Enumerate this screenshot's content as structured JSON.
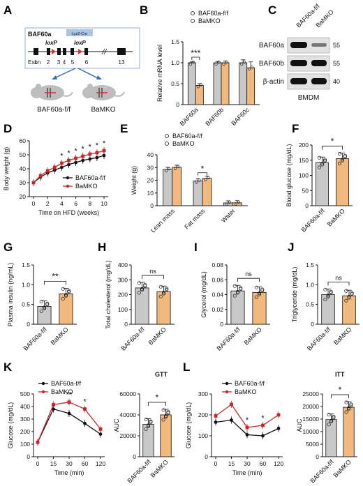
{
  "colors": {
    "ctrl": "#C8C8C8",
    "ko": "#F2B97E",
    "ctrl_line": "#111111",
    "ko_line": "#C62828",
    "gene_box": "#A9C4E6"
  },
  "panels": {
    "A": {
      "letter": "A",
      "gene": "BAF60a",
      "cre_label": "Lyz2-Cre",
      "loxp1": "loxP",
      "loxp2": "loxP",
      "exon_label": "Exon",
      "exon_nums": [
        "1",
        "2",
        "3",
        "4",
        "5",
        "6",
        "13"
      ],
      "mouse1": "BAF60a-f/f",
      "mouse2": "BaMKO"
    },
    "C": {
      "letter": "C",
      "col1": "BAF60a-f/f",
      "col2": "BaMKO",
      "rows": [
        "BAF60a",
        "BAF60b",
        "β-actin"
      ],
      "markers": [
        "55",
        "55",
        "40"
      ],
      "caption": "BMDM"
    }
  },
  "chart_data": [
    {
      "panel": "B",
      "type": "bar",
      "ylabel": "Relative mRNA level",
      "ylim": [
        0,
        1.5
      ],
      "yticks": [
        "0",
        "0.5",
        "1.0",
        "1.5"
      ],
      "categories": [
        "BAF60a",
        "BAF60b",
        "BAF60c"
      ],
      "series": [
        {
          "name": "BAF60a-f/f",
          "values": [
            1.0,
            1.0,
            1.0
          ],
          "err": [
            0.02,
            0.03,
            0.07
          ]
        },
        {
          "name": "BaMKO",
          "values": [
            0.46,
            1.0,
            0.88
          ],
          "err": [
            0.04,
            0.04,
            0.14
          ]
        }
      ],
      "legend": "top",
      "annotations": [
        {
          "text": "***",
          "between": [
            0,
            0
          ]
        }
      ]
    },
    {
      "panel": "D",
      "type": "line",
      "xlabel": "Time on HFD (weeks)",
      "ylabel": "Body weight (g)",
      "x": [
        0,
        1,
        2,
        3,
        4,
        5,
        6,
        7,
        8,
        9,
        10
      ],
      "xticks": [
        "0",
        "2",
        "4",
        "6",
        "8",
        "10"
      ],
      "ylim": [
        20,
        60
      ],
      "yticks": [
        "20",
        "30",
        "40",
        "50",
        "60"
      ],
      "series": [
        {
          "name": "BAF60a-f/f",
          "values": [
            30,
            34,
            37,
            39,
            41,
            43,
            44.5,
            46,
            47,
            48,
            49.5
          ]
        },
        {
          "name": "BaMKO",
          "values": [
            30,
            35,
            38.5,
            41,
            44,
            46,
            47.5,
            49,
            50.5,
            51.5,
            53
          ]
        }
      ],
      "stars": [
        "*",
        "*",
        "*",
        "*",
        "*",
        "*",
        "*"
      ],
      "star_x": [
        4,
        5,
        6,
        7,
        8,
        9,
        10
      ],
      "legend": "right"
    },
    {
      "panel": "E",
      "type": "bar",
      "ylabel": "Weight (g)",
      "ylim": [
        0,
        40
      ],
      "yticks": [
        "0",
        "10",
        "20",
        "30",
        "40"
      ],
      "categories": [
        "Lean mass",
        "Fat mass",
        "Water"
      ],
      "series": [
        {
          "name": "BAF60a-f/f",
          "values": [
            28.5,
            19.5,
            2.2
          ]
        },
        {
          "name": "BaMKO",
          "values": [
            30.2,
            21.5,
            2.3
          ]
        }
      ],
      "legend": "top",
      "annotations": [
        {
          "text": "*",
          "category": 1
        }
      ]
    },
    {
      "panel": "F",
      "type": "bar",
      "ylabel": "Blood glucose (mg/dL)",
      "ylim": [
        0,
        200
      ],
      "yticks": [
        "0",
        "50",
        "100",
        "150",
        "200"
      ],
      "categories": [
        "BAF60a-f/f",
        "BaMKO"
      ],
      "values": [
        142,
        155
      ],
      "sig": "*"
    },
    {
      "panel": "G",
      "type": "bar",
      "ylabel": "Plasma insulin (ng/mL)",
      "ylim": [
        0,
        1.5
      ],
      "yticks": [
        "0",
        "0.5",
        "1.0",
        "1.5"
      ],
      "categories": [
        "BAF60a-f/f",
        "BaMKO"
      ],
      "values": [
        0.45,
        0.77
      ],
      "sig": "**"
    },
    {
      "panel": "H",
      "type": "bar",
      "ylabel": "Total cholesterol (mg/dL)",
      "ylim": [
        0,
        400
      ],
      "yticks": [
        "0",
        "100",
        "200",
        "300",
        "400"
      ],
      "categories": [
        "BAF60a-f/f",
        "BaMKO"
      ],
      "values": [
        245,
        220
      ],
      "sig": "ns"
    },
    {
      "panel": "I",
      "type": "bar",
      "ylabel": "Glycerol (mg/dL)",
      "ylim": [
        0,
        0.08
      ],
      "yticks": [
        "0",
        "0.02",
        "0.04",
        "0.06",
        "0.08"
      ],
      "categories": [
        "BAF60a-f/f",
        "BaMKO"
      ],
      "values": [
        0.045,
        0.043
      ],
      "sig": "ns"
    },
    {
      "panel": "J",
      "type": "bar",
      "ylabel": "Triglyceride (mg/dL)",
      "ylim": [
        0,
        1.5
      ],
      "yticks": [
        "0",
        "0.5",
        "1.0",
        "1.5"
      ],
      "categories": [
        "BAF60a-f/f",
        "BaMKO"
      ],
      "values": [
        0.75,
        0.72
      ],
      "sig": "ns"
    },
    {
      "panel": "K",
      "type": "line",
      "title": "GTT",
      "xlabel": "Time (min)",
      "ylabel": "Glucose (mg/dL)",
      "x": [
        "0",
        "15",
        "30",
        "60",
        "120"
      ],
      "ylim": [
        0,
        500
      ],
      "yticks": [
        "0",
        "100",
        "200",
        "300",
        "400",
        "500"
      ],
      "series": [
        {
          "name": "BAF60a-f/f",
          "values": [
            115,
            380,
            345,
            265,
            180
          ]
        },
        {
          "name": "BaMKO",
          "values": [
            115,
            415,
            435,
            380,
            220
          ]
        }
      ],
      "stars": [
        "**",
        "*"
      ],
      "star_x": [
        2,
        3
      ],
      "legend": "top-left"
    },
    {
      "panel": "K",
      "type": "bar",
      "ylabel": "AUC",
      "ylim": [
        0,
        60000
      ],
      "yticks": [
        "0",
        "20000",
        "40000",
        "60000"
      ],
      "categories": [
        "BAF60a-f/f",
        "BaMKO"
      ],
      "values": [
        31000,
        40000
      ],
      "sig": "*"
    },
    {
      "panel": "L",
      "type": "line",
      "title": "ITT",
      "xlabel": "Time (min)",
      "ylabel": "Glucose (mg/dL)",
      "x": [
        "0",
        "15",
        "30",
        "60",
        "120"
      ],
      "ylim": [
        0,
        300
      ],
      "yticks": [
        "0",
        "100",
        "200",
        "300"
      ],
      "series": [
        {
          "name": "BAF60a-f/f",
          "values": [
            165,
            175,
            105,
            100,
            135
          ]
        },
        {
          "name": "BaMKO",
          "values": [
            195,
            250,
            140,
            150,
            200
          ]
        }
      ],
      "stars": [
        "*",
        "*"
      ],
      "star_x": [
        2,
        3
      ],
      "legend": "top"
    },
    {
      "panel": "L",
      "type": "bar",
      "ylabel": "AUC",
      "ylim": [
        0,
        25000
      ],
      "yticks": [
        "0",
        "5000",
        "10000",
        "15000",
        "20000",
        "25000"
      ],
      "categories": [
        "BAF60a-f/f",
        "BaMKO"
      ],
      "values": [
        14800,
        19700
      ],
      "sig": "*"
    }
  ]
}
